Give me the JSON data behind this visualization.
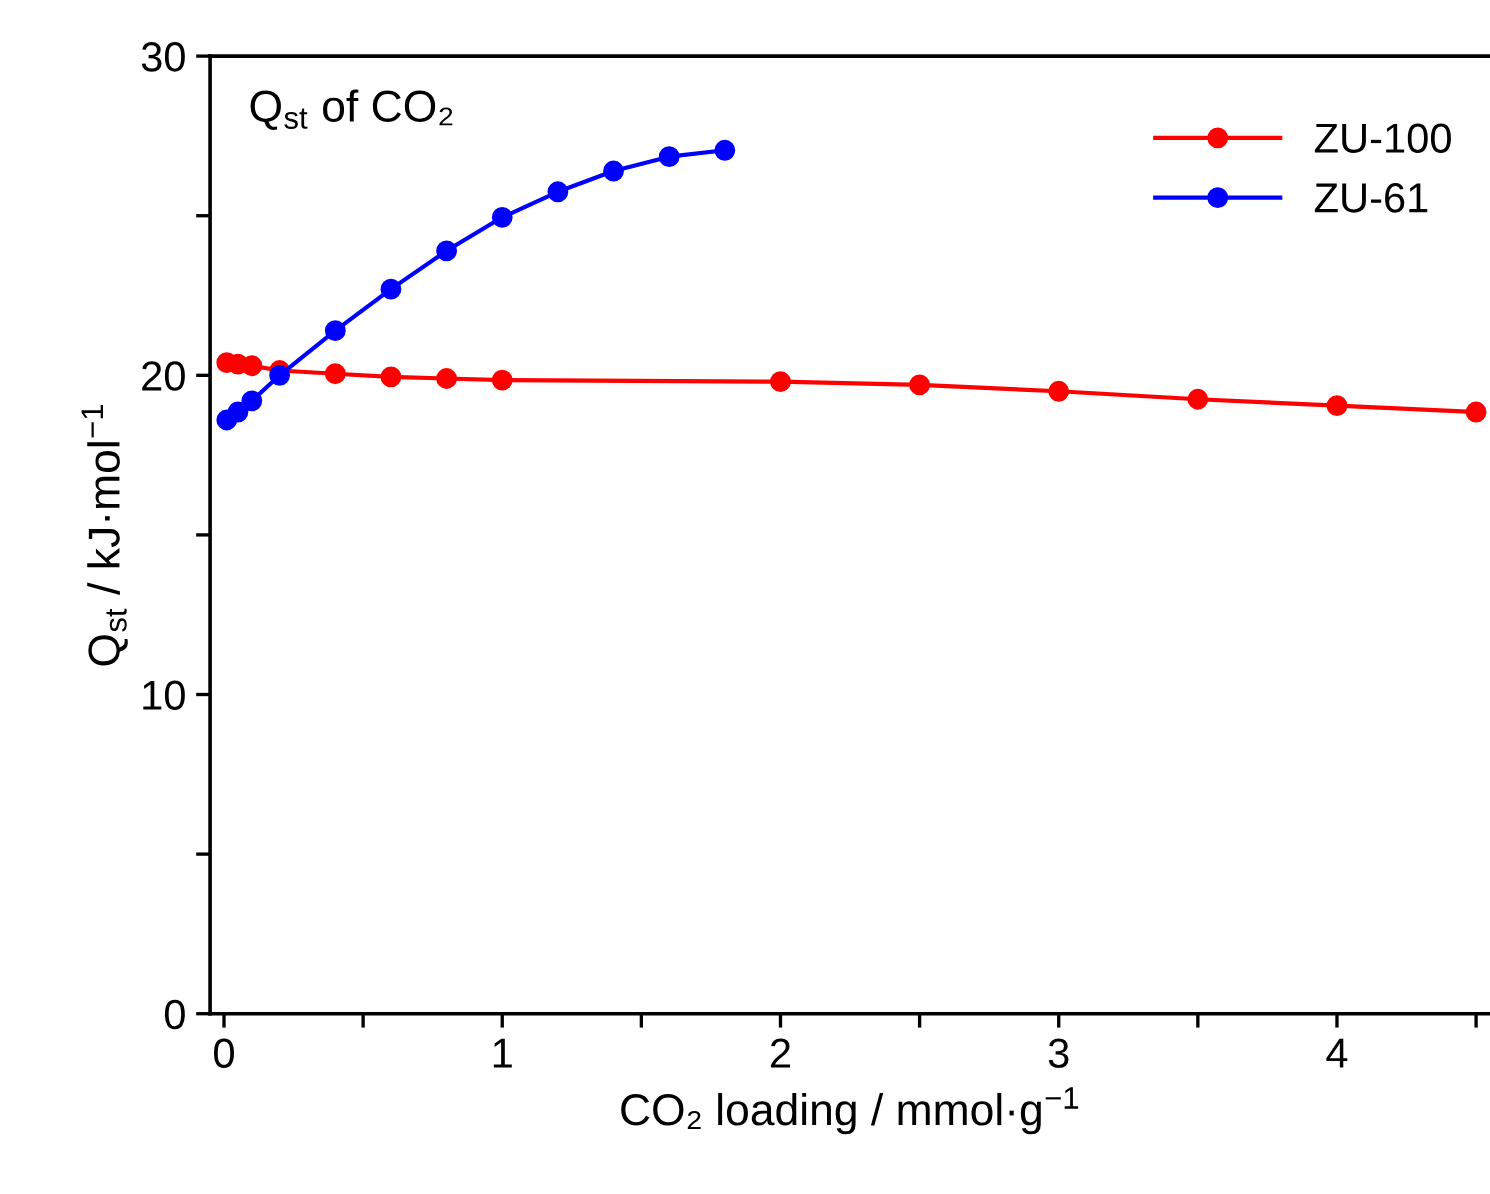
{
  "chart_data": {
    "type": "line",
    "xlabel": "CO₂ loading / mmol·g$^{−1}$",
    "ylabel": "Q$_{st}$ / kJ·mol$^{−1}$",
    "annotations": [
      "Q$_{st}$ of CO₂"
    ],
    "xlim": [
      -0.05,
      4.55
    ],
    "ylim": [
      0,
      30
    ],
    "xticks": [
      0,
      {
        "value": 0.5,
        "label": null
      },
      1,
      {
        "value": 1.5,
        "label": null
      },
      2,
      {
        "value": 2.5,
        "label": null
      },
      3,
      {
        "value": 3.5,
        "label": null
      },
      4,
      {
        "value": 4.5,
        "label": null
      }
    ],
    "yticks": [
      0,
      {
        "value": 5,
        "label": null
      },
      10,
      {
        "value": 15,
        "label": null
      },
      20,
      {
        "value": 25,
        "label": null
      },
      30
    ],
    "marker": "circle",
    "line_style": "solid",
    "legend": "top right",
    "grid": false,
    "series": [
      {
        "name": "ZU-100",
        "color": "#ff0000",
        "x": [
          0.01,
          0.05,
          0.1,
          0.2,
          0.4,
          0.6,
          0.8,
          1.0,
          2.0,
          2.5,
          3.0,
          3.5,
          4.0,
          4.5
        ],
        "values": [
          20.4,
          20.35,
          20.3,
          20.15,
          20.05,
          19.95,
          19.9,
          19.85,
          19.8,
          19.7,
          19.5,
          19.25,
          19.05,
          18.85
        ]
      },
      {
        "name": "ZU-61",
        "color": "#0000ff",
        "x": [
          0.01,
          0.05,
          0.1,
          0.2,
          0.4,
          0.6,
          0.8,
          1.0,
          1.2,
          1.4,
          1.6,
          1.8
        ],
        "values": [
          18.6,
          18.85,
          19.2,
          20.0,
          21.4,
          22.7,
          23.9,
          24.95,
          25.75,
          26.4,
          26.85,
          27.05
        ]
      }
    ]
  }
}
